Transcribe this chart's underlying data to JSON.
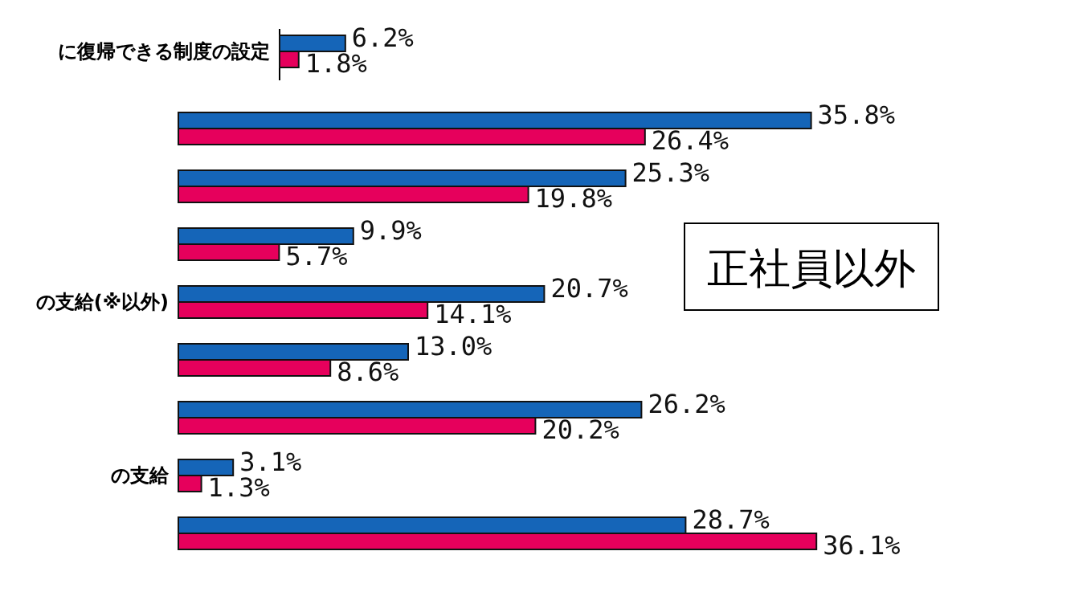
{
  "chart_data": [
    {
      "type": "bar",
      "orientation": "horizontal",
      "categories": [
        "に復帰できる制度の設定"
      ],
      "series": [
        {
          "color": "#1565b8",
          "values": [
            6.2
          ],
          "value_labels": [
            "6.2%"
          ]
        },
        {
          "color": "#e6005c",
          "values": [
            1.8
          ],
          "value_labels": [
            "1.8%"
          ]
        }
      ]
    },
    {
      "type": "bar",
      "orientation": "horizontal",
      "categories": [
        null,
        null,
        null,
        "の支給(※以外)",
        null,
        null,
        "の支給",
        null
      ],
      "annotations": [
        "正社員以外"
      ],
      "series": [
        {
          "color": "#1565b8",
          "values": [
            35.8,
            25.3,
            9.9,
            20.7,
            13.0,
            26.2,
            3.1,
            28.7
          ],
          "value_labels": [
            "35.8%",
            "25.3%",
            "9.9%",
            "20.7%",
            "13.0%",
            "26.2%",
            "3.1%",
            "28.7%"
          ]
        },
        {
          "color": "#e6005c",
          "values": [
            26.4,
            19.8,
            5.7,
            14.1,
            8.6,
            20.2,
            1.3,
            36.1
          ],
          "value_labels": [
            "26.4%",
            "19.8%",
            "5.7%",
            "14.1%",
            "8.6%",
            "20.2%",
            "1.3%",
            "36.1%"
          ]
        }
      ]
    }
  ]
}
